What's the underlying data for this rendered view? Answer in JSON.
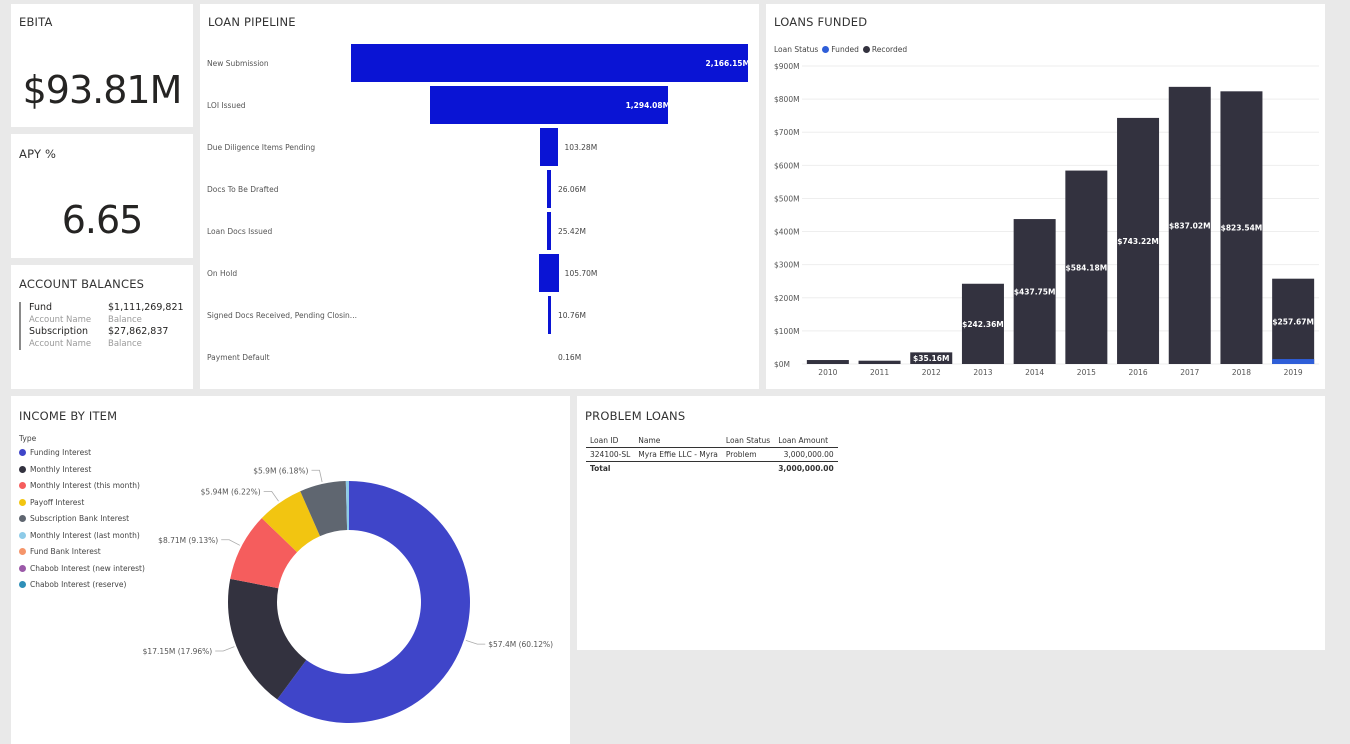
{
  "ebita": {
    "title": "EBITA",
    "value": "$93.81M"
  },
  "apy": {
    "title": "APY %",
    "value": "6.65"
  },
  "balances": {
    "title": "ACCOUNT BALANCES",
    "rows": [
      {
        "name": "Fund",
        "name_sub": "Account Name",
        "value": "$1,111,269,821",
        "value_sub": "Balance"
      },
      {
        "name": "Subscription",
        "name_sub": "Account Name",
        "value": "$27,862,837",
        "value_sub": "Balance"
      }
    ]
  },
  "pipeline": {
    "title": "LOAN PIPELINE",
    "stages": [
      {
        "label": "New Submission",
        "value": 2166.15,
        "display": "2,166.15M"
      },
      {
        "label": "LOI Issued",
        "value": 1294.08,
        "display": "1,294.08M"
      },
      {
        "label": "Due Diligence Items Pending",
        "value": 103.28,
        "display": "103.28M"
      },
      {
        "label": "Docs To Be Drafted",
        "value": 26.06,
        "display": "26.06M"
      },
      {
        "label": "Loan Docs Issued",
        "value": 25.42,
        "display": "25.42M"
      },
      {
        "label": "On Hold",
        "value": 105.7,
        "display": "105.70M"
      },
      {
        "label": "Signed Docs Received, Pending Closin...",
        "value": 10.76,
        "display": "10.76M"
      },
      {
        "label": "Payment Default",
        "value": 0.16,
        "display": "0.16M"
      }
    ]
  },
  "loans_funded": {
    "title": "LOANS FUNDED",
    "legend_title": "Loan Status",
    "legend": [
      {
        "name": "Funded",
        "color": "#2e5ed8"
      },
      {
        "name": "Recorded",
        "color": "#33323f"
      }
    ]
  },
  "income": {
    "title": "INCOME BY ITEM",
    "legend_title": "Type",
    "items": [
      {
        "name": "Funding Interest",
        "color": "#3f45c9"
      },
      {
        "name": "Monthly Interest",
        "color": "#33323f"
      },
      {
        "name": "Monthly Interest (this month)",
        "color": "#f55d5d"
      },
      {
        "name": "Payoff Interest",
        "color": "#f2c511"
      },
      {
        "name": "Subscription Bank Interest",
        "color": "#5f6670"
      },
      {
        "name": "Monthly Interest (last month)",
        "color": "#8ecbe8"
      },
      {
        "name": "Fund Bank Interest",
        "color": "#f5956a"
      },
      {
        "name": "Chabob Interest (new interest)",
        "color": "#9b59a8"
      },
      {
        "name": "Chabob Interest (reserve)",
        "color": "#2e8fb8"
      }
    ]
  },
  "problem_loans": {
    "title": "PROBLEM LOANS",
    "columns": [
      "Loan ID",
      "Name",
      "Loan Status",
      "Loan Amount"
    ],
    "rows": [
      [
        "324100-SL",
        "Myra Effie LLC - Myra",
        "Problem",
        "3,000,000.00"
      ]
    ],
    "total_label": "Total",
    "total_value": "3,000,000.00"
  },
  "chart_data": [
    {
      "type": "bar",
      "title": "LOANS FUNDED",
      "categories": [
        "2010",
        "2011",
        "2012",
        "2013",
        "2014",
        "2015",
        "2016",
        "2017",
        "2018",
        "2019"
      ],
      "series": [
        {
          "name": "Recorded",
          "values": [
            12,
            10,
            35.16,
            242.36,
            437.75,
            584.18,
            743.22,
            837.02,
            823.54,
            257.67
          ]
        },
        {
          "name": "Funded",
          "values": [
            0,
            0,
            0,
            0,
            0,
            0,
            0,
            0,
            0,
            15
          ]
        }
      ],
      "data_labels": [
        "",
        "",
        "$35.16M",
        "$242.36M",
        "$437.75M",
        "$584.18M",
        "$743.22M",
        "$837.02M",
        "$823.54M",
        "$257.67M"
      ],
      "yticks": [
        "$0M",
        "$100M",
        "$200M",
        "$300M",
        "$400M",
        "$500M",
        "$600M",
        "$700M",
        "$800M",
        "$900M"
      ],
      "ylim": [
        0,
        900
      ],
      "grid": true,
      "legend_position": "top-left"
    },
    {
      "type": "pie",
      "title": "INCOME BY ITEM",
      "labels": [
        "Funding Interest",
        "Monthly Interest",
        "Monthly Interest (this month)",
        "Payoff Interest",
        "Subscription Bank Interest",
        "Monthly Interest (last month)"
      ],
      "values": [
        57.4,
        17.15,
        8.71,
        5.94,
        5.9,
        0.4
      ],
      "data_labels": [
        "$57.4M (60.12%)",
        "$17.15M (17.96%)",
        "$8.71M (9.13%)",
        "$5.94M (6.22%)",
        "$5.9M (6.18%)",
        ""
      ]
    }
  ]
}
